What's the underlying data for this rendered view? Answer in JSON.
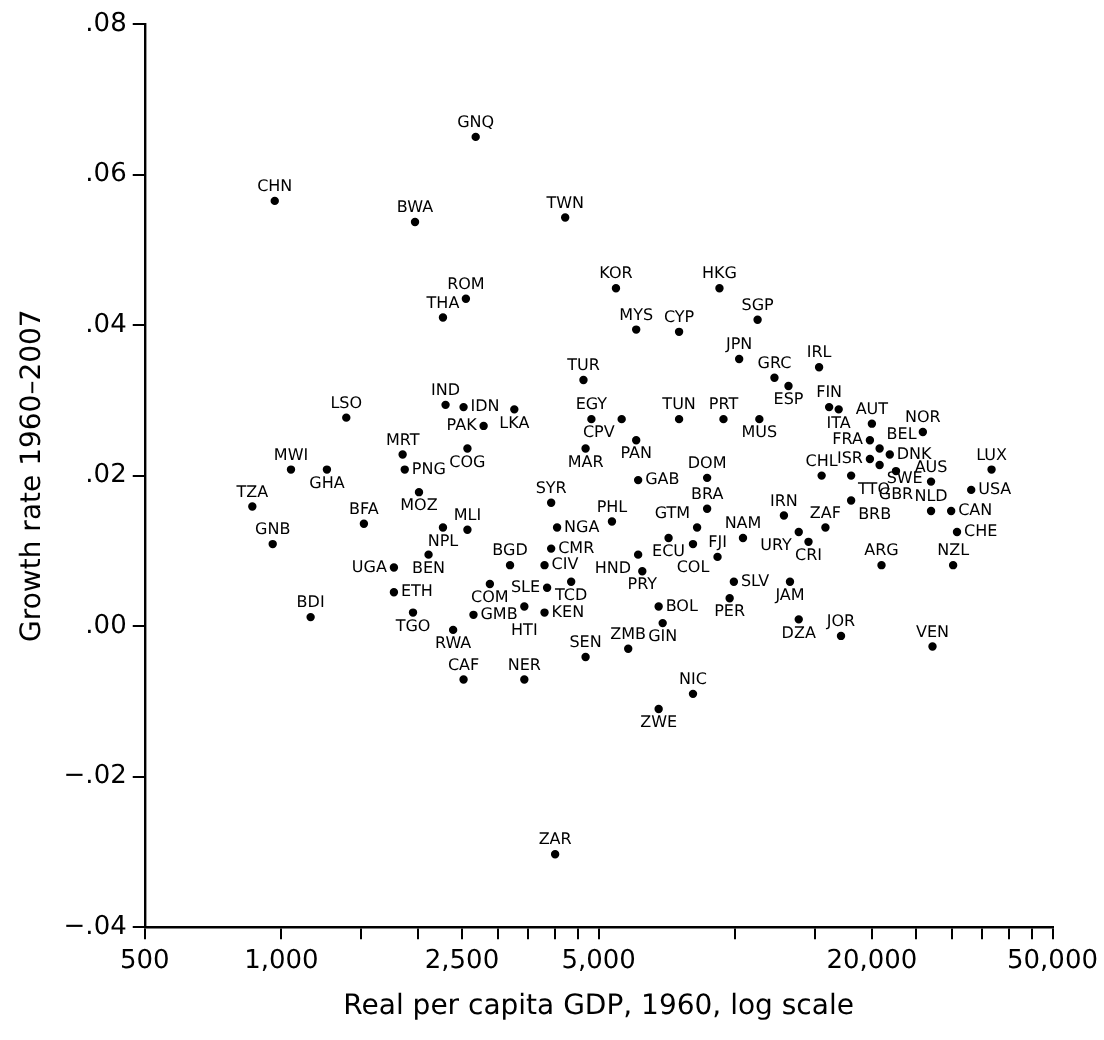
{
  "chart_data": {
    "type": "scatter",
    "xlabel": "Real per capita GDP, 1960, log scale",
    "ylabel": "Growth rate 1960–2007",
    "log": "x",
    "grid": false,
    "legend": false,
    "marker": "circle",
    "xlim": [
      500,
      50000
    ],
    "ylim": [
      -0.04,
      0.08
    ],
    "xticks": [
      500,
      {
        "value": 1000,
        "label": "1,000"
      },
      {
        "value": 1500,
        "label": null
      },
      {
        "value": 2000,
        "label": null
      },
      {
        "value": 2500,
        "label": "2,500"
      },
      {
        "value": 3000,
        "label": null
      },
      {
        "value": 3500,
        "label": null
      },
      {
        "value": 4000,
        "label": null
      },
      {
        "value": 4500,
        "label": null
      },
      {
        "value": 5000,
        "label": "5,000"
      },
      {
        "value": 10000,
        "label": null
      },
      {
        "value": 15000,
        "label": null
      },
      {
        "value": 20000,
        "label": "20,000"
      },
      {
        "value": 25000,
        "label": null
      },
      {
        "value": 30000,
        "label": null
      },
      {
        "value": 35000,
        "label": null
      },
      {
        "value": 40000,
        "label": null
      },
      {
        "value": 45000,
        "label": null
      },
      {
        "value": 50000,
        "label": "50,000"
      }
    ],
    "yticks": [
      {
        "value": -0.04,
        "label": "−.04"
      },
      {
        "value": -0.02,
        "label": "−.02"
      },
      {
        "value": 0,
        "label": ".00"
      },
      {
        "value": 0.02,
        "label": ".02"
      },
      {
        "value": 0.04,
        "label": ".04"
      },
      {
        "value": 0.06,
        "label": ".06"
      },
      {
        "value": 0.08,
        "label": ".08"
      }
    ],
    "x": [
      967,
      2680,
      1970,
      4220,
      5460,
      2550,
      2270,
      4630,
      1390,
      2300,
      2520,
      3260,
      2790,
      9230,
      11200,
      6050,
      7520,
      10200,
      12200,
      13100,
      15300,
      7520,
      9420,
      11300,
      16100,
      16900,
      20000,
      25900,
      4820,
      5620,
      2570,
      1850,
      1870,
      1050,
      1260,
      2010,
      4680,
      6050,
      863,
      3930,
      1520,
      2270,
      2570,
      4050,
      5350,
      957,
      3930,
      2110,
      1770,
      3190,
      3800,
      4350,
      3850,
      2880,
      1770,
      1950,
      2650,
      3430,
      3800,
      1160,
      2390,
      2520,
      3430,
      4680,
      5810,
      4010,
      6110,
      8670,
      8670,
      8240,
      7130,
      8070,
      10400,
      12800,
      13800,
      15800,
      14500,
      6110,
      6240,
      9140,
      9930,
      9720,
      13200,
      6780,
      6920,
      13800,
      17100,
      27200,
      8070,
      6780,
      21000,
      30200,
      30800,
      15500,
      18000,
      18000,
      36700,
      33100,
      27000,
      27000,
      29900,
      19800,
      20800,
      19800,
      21900,
      20800,
      22600
    ],
    "values": [
      0.0565,
      0.065,
      0.0537,
      0.0543,
      0.0449,
      0.0435,
      0.041,
      0.0327,
      0.0277,
      0.0294,
      0.0291,
      0.0288,
      0.0266,
      0.0449,
      0.0407,
      0.0394,
      0.0391,
      0.0355,
      0.033,
      0.0319,
      0.0344,
      0.0275,
      0.0275,
      0.0275,
      0.0291,
      0.0288,
      0.0269,
      0.0258,
      0.0275,
      0.0275,
      0.0236,
      0.0228,
      0.0208,
      0.0208,
      0.0208,
      0.0178,
      0.0236,
      0.0247,
      0.0159,
      0.0164,
      0.0136,
      0.0131,
      0.0128,
      0.0131,
      0.0139,
      0.0109,
      0.0103,
      0.0095,
      0.0078,
      0.0081,
      0.0081,
      0.0059,
      0.0051,
      0.0056,
      0.0045,
      0.0018,
      0.0015,
      0.0026,
      0.0018,
      0.0012,
      -0.0005,
      -0.0071,
      -0.0071,
      -0.0041,
      -0.003,
      -0.0303,
      0.0194,
      0.0197,
      0.0156,
      0.0131,
      0.0117,
      0.0109,
      0.0117,
      0.0147,
      0.0125,
      0.0131,
      0.0112,
      0.0095,
      0.0073,
      0.0092,
      0.0059,
      0.0037,
      0.0059,
      0.0026,
      0.0004,
      0.0009,
      -0.0013,
      -0.0027,
      -0.009,
      -0.011,
      0.0081,
      0.0081,
      0.0125,
      0.02,
      0.02,
      0.0167,
      0.0208,
      0.0181,
      0.0192,
      0.0153,
      0.0153,
      0.0247,
      0.0236,
      0.0222,
      0.0228,
      0.0214,
      0.0206
    ],
    "value_labels": [
      "CHN",
      "GNQ",
      "BWA",
      "TWN",
      "KOR",
      "ROM",
      "THA",
      "TUR",
      "LSO",
      "IND",
      "IDN",
      "LKA",
      "PAK",
      "HKG",
      "SGP",
      "MYS",
      "CYP",
      "JPN",
      "GRC",
      "ESP",
      "IRL",
      "TUN",
      "PRT",
      "MUS",
      "FIN",
      "ITA",
      "AUT",
      "NOR",
      "EGY",
      "CPV",
      "COG",
      "MRT",
      "PNG",
      "MWI",
      "GHA",
      "MOZ",
      "MAR",
      "PAN",
      "TZA",
      "SYR",
      "BFA",
      "NPL",
      "MLI",
      "NGA",
      "PHL",
      "GNB",
      "CMR",
      "BEN",
      "UGA",
      "BGD",
      "CIV",
      "TCD",
      "SLE",
      "COM",
      "ETH",
      "TGO",
      "GMB",
      "HTI",
      "KEN",
      "BDI",
      "RWA",
      "CAF",
      "NER",
      "SEN",
      "ZMB",
      "ZAR",
      "GAB",
      "DOM",
      "BRA",
      "GTM",
      "ECU",
      "COL",
      "NAM",
      "IRN",
      "URY",
      "ZAF",
      "CRI",
      "HND",
      "PRY",
      "FJI",
      "SLV",
      "PER",
      "JAM",
      "BOL",
      "GIN",
      "DZA",
      "JOR",
      "VEN",
      "NIC",
      "ZWE",
      "ARG",
      "NZL",
      "CHE",
      "CHL",
      "TTO",
      "BRB",
      "LUX",
      "USA",
      "AUS",
      "NLD",
      "CAN",
      "FRA",
      "BEL",
      "ISR",
      "DNK",
      "SWE",
      "GBR"
    ]
  }
}
